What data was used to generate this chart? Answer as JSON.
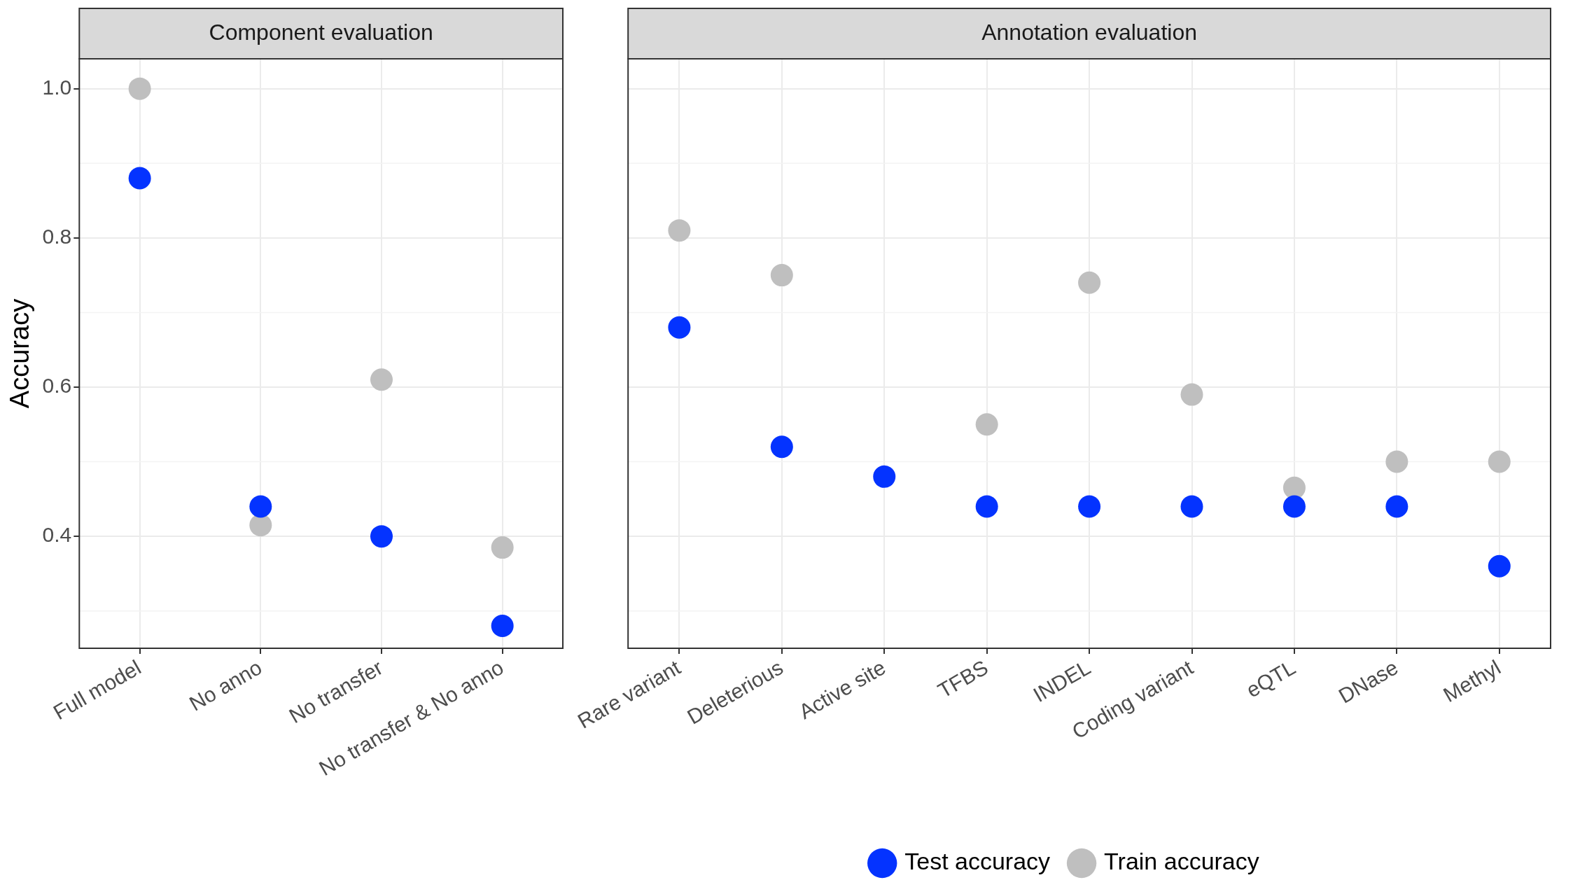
{
  "chart_data": [
    {
      "type": "scatter",
      "title": "Component evaluation",
      "ylabel": "Accuracy",
      "categories": [
        "Full model",
        "No anno",
        "No transfer",
        "No transfer & No anno"
      ],
      "series": [
        {
          "color": "#0433ff",
          "values": [
            0.88,
            0.44,
            0.4,
            0.28
          ]
        },
        {
          "color": "#bfbfbf",
          "values": [
            1.0,
            0.415,
            0.61,
            0.385
          ]
        }
      ],
      "ylim": [
        0.25,
        1.04
      ],
      "yticks": [
        0.4,
        0.6,
        0.8,
        {
          "value": 1,
          "label": "1.0"
        }
      ],
      "grid": true,
      "marker": "circle"
    },
    {
      "type": "scatter",
      "title": "Annotation evaluation",
      "categories": [
        "Rare variant",
        "Deleterious",
        "Active site",
        "TFBS",
        "INDEL",
        "Coding variant",
        "eQTL",
        "DNase",
        "Methyl"
      ],
      "series": [
        {
          "name": "Test accuracy",
          "color": "#0433ff",
          "values": [
            0.68,
            0.52,
            0.48,
            0.44,
            0.44,
            0.44,
            0.44,
            0.44,
            0.36
          ]
        },
        {
          "name": "Train accuracy",
          "color": "#bfbfbf",
          "values": [
            0.81,
            0.75,
            null,
            0.55,
            0.74,
            0.59,
            0.465,
            0.5,
            0.5
          ]
        }
      ],
      "ylim": [
        0.25,
        1.04
      ],
      "yticks": [
        0.4,
        0.6,
        0.8,
        1
      ],
      "grid": true,
      "marker": "circle",
      "tick_labels": "x",
      "legend": "bottom"
    }
  ]
}
